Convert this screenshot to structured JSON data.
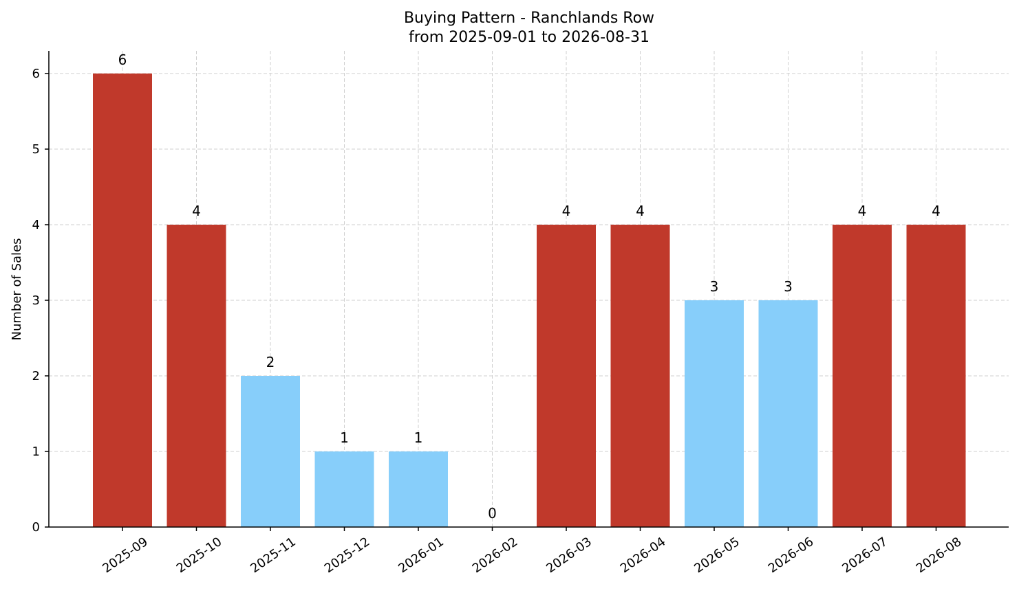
{
  "chart_data": {
    "type": "bar",
    "title": "Buying Pattern - Ranchlands Row",
    "subtitle": "from 2025-09-01 to 2026-08-31",
    "xlabel": "",
    "ylabel": "Number of Sales",
    "categories": [
      "2025-09",
      "2025-10",
      "2025-11",
      "2025-12",
      "2026-01",
      "2026-02",
      "2026-03",
      "2026-04",
      "2026-05",
      "2026-06",
      "2026-07",
      "2026-08"
    ],
    "values": [
      6,
      4,
      2,
      1,
      1,
      0,
      4,
      4,
      3,
      3,
      4,
      4
    ],
    "bar_colors": [
      "#c0392b",
      "#c0392b",
      "#87cefa",
      "#87cefa",
      "#87cefa",
      "#87cefa",
      "#c0392b",
      "#c0392b",
      "#87cefa",
      "#87cefa",
      "#c0392b",
      "#c0392b"
    ],
    "ylim": [
      0,
      6.3
    ],
    "yticks": [
      0,
      1,
      2,
      3,
      4,
      5,
      6
    ],
    "grid": true,
    "data_labels": true,
    "x_tick_rotation_deg": 35
  }
}
